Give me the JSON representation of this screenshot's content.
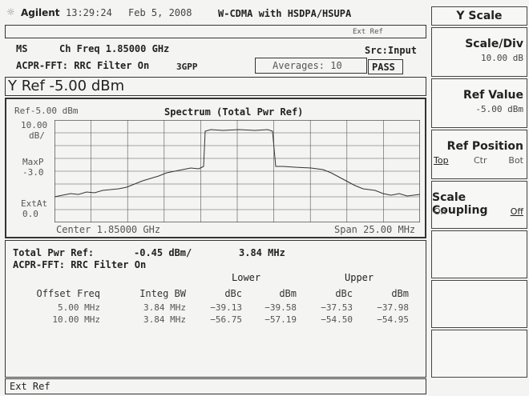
{
  "header": {
    "logo": "Agilent",
    "time": "13:29:24",
    "date": "Feb 5, 2008",
    "mode": "W-CDMA with HSDPA/HSUPA",
    "status": "Ext Ref"
  },
  "info": {
    "mode": "MS",
    "ch_freq": "Ch Freq 1.85000 GHz",
    "source": "Src:Input",
    "filter": "ACPR-FFT: RRC Filter On",
    "standard": "3GPP",
    "averages": "Averages: 10",
    "result": "PASS"
  },
  "y_ref": "Y Ref -5.00 dBm",
  "graph": {
    "ref_label": "Ref-5.00 dBm",
    "title": "Spectrum (Total Pwr Ref)",
    "scale": "10.00",
    "scale_unit": "dB/",
    "detector": "MaxP",
    "detector_value": "-3.0",
    "ext_att": "ExtAt",
    "ext_att_value": "0.0",
    "center": "Center 1.85000 GHz",
    "span": "Span 25.00 MHz"
  },
  "results": {
    "total_label": "Total Pwr Ref:",
    "total_value": "-0.45 dBm/",
    "total_bw": "3.84 MHz",
    "filter": "ACPR-FFT: RRC Filter On",
    "group_headers": [
      "Lower",
      "Upper"
    ],
    "columns": [
      "Offset Freq",
      "Integ BW",
      "dBc",
      "dBm",
      "dBc",
      "dBm"
    ],
    "rows": [
      [
        "5.00 MHz",
        "3.84 MHz",
        "−39.13",
        "−39.58",
        "−37.53",
        "−37.98"
      ],
      [
        "10.00 MHz",
        "3.84 MHz",
        "−56.75",
        "−57.19",
        "−54.50",
        "−54.95"
      ]
    ]
  },
  "footer": "Ext Ref",
  "softkeys": {
    "title": "Y Scale",
    "keys": [
      {
        "label": "Scale/Div",
        "value": "10.00 dB"
      },
      {
        "label": "Ref Value",
        "value": "-5.00 dBm"
      },
      {
        "label": "Ref Position",
        "options": [
          "Top",
          "Ctr",
          "Bot"
        ]
      },
      {
        "label": "Scale Coupling",
        "options": [
          "On",
          "Off"
        ]
      }
    ]
  }
}
